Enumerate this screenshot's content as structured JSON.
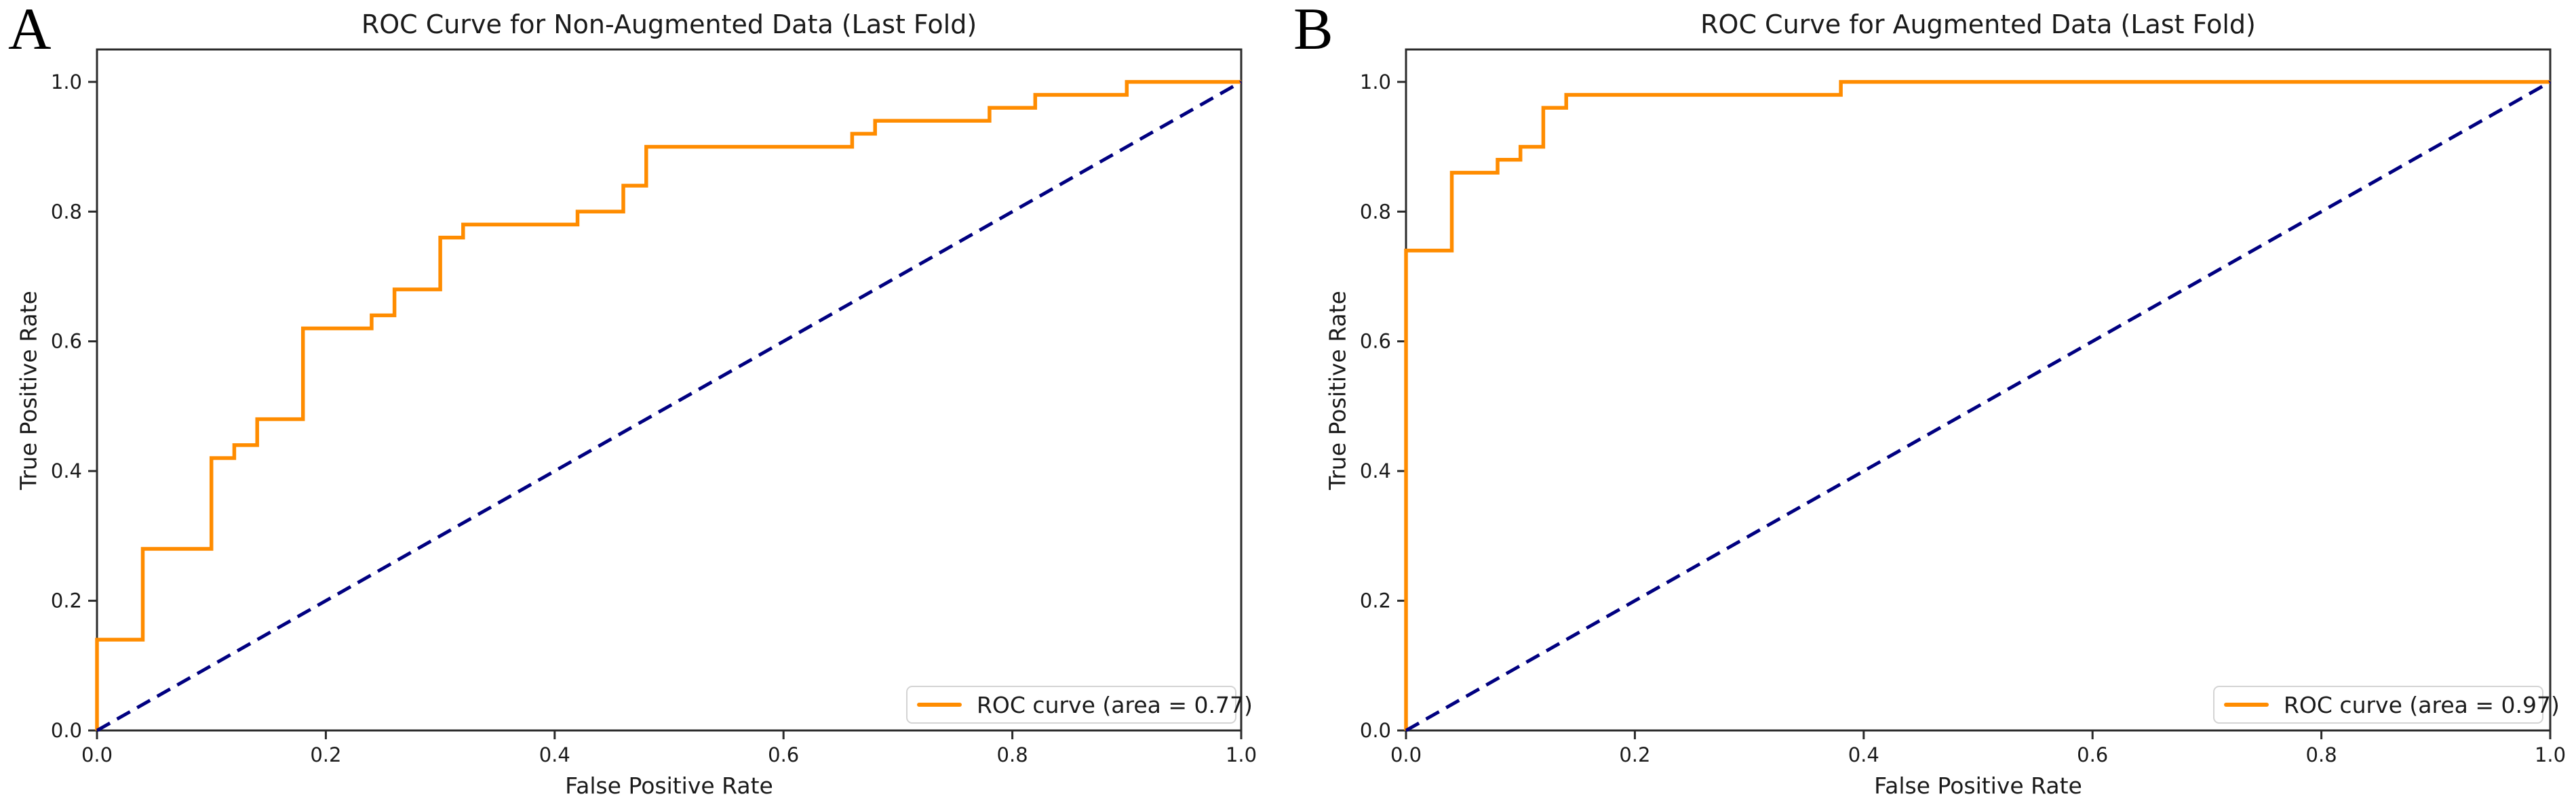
{
  "figure": {
    "background": "#ffffff",
    "text_color": "#1a1a1a",
    "spine_color": "#2b2b2b"
  },
  "chart_data": [
    {
      "type": "line",
      "panel_label": "A",
      "title": "ROC Curve for Non-Augmented Data (Last Fold)",
      "xlabel": "False Positive Rate",
      "ylabel": "True Positive Rate",
      "xlim": [
        0.0,
        1.0
      ],
      "ylim": [
        0.0,
        1.05
      ],
      "grid": false,
      "xticks": [
        0.0,
        0.2,
        0.4,
        0.6,
        0.8,
        1.0
      ],
      "xtick_labels": [
        "0.0",
        "0.2",
        "0.4",
        "0.6",
        "0.8",
        "1.0"
      ],
      "yticks": [
        0.0,
        0.2,
        0.4,
        0.6,
        0.8,
        1.0
      ],
      "ytick_labels": [
        "0.0",
        "0.2",
        "0.4",
        "0.6",
        "0.8",
        "1.0"
      ],
      "legend": {
        "position": "lower right",
        "label": "ROC curve (area = 0.77)"
      },
      "auc": 0.77,
      "colors": {
        "roc": "#FF8C00",
        "chance": "#000080"
      },
      "series": [
        {
          "name": "roc-curve",
          "style": "step-solid",
          "color": "#FF8C00",
          "fpr": [
            0.0,
            0.0,
            0.04,
            0.04,
            0.1,
            0.1,
            0.12,
            0.12,
            0.14,
            0.14,
            0.18,
            0.18,
            0.24,
            0.24,
            0.26,
            0.26,
            0.3,
            0.3,
            0.32,
            0.32,
            0.42,
            0.42,
            0.46,
            0.46,
            0.48,
            0.48,
            0.66,
            0.66,
            0.68,
            0.68,
            0.78,
            0.78,
            0.82,
            0.82,
            0.9,
            0.9,
            1.0
          ],
          "tpr": [
            0.0,
            0.14,
            0.14,
            0.28,
            0.28,
            0.42,
            0.42,
            0.44,
            0.44,
            0.48,
            0.48,
            0.62,
            0.62,
            0.64,
            0.64,
            0.68,
            0.68,
            0.76,
            0.76,
            0.78,
            0.78,
            0.8,
            0.8,
            0.84,
            0.84,
            0.9,
            0.9,
            0.92,
            0.92,
            0.94,
            0.94,
            0.96,
            0.96,
            0.98,
            0.98,
            1.0,
            1.0
          ]
        },
        {
          "name": "chance-diagonal",
          "style": "dashed",
          "color": "#000080",
          "fpr": [
            0.0,
            1.0
          ],
          "tpr": [
            0.0,
            1.0
          ]
        }
      ]
    },
    {
      "type": "line",
      "panel_label": "B",
      "title": "ROC Curve for Augmented Data (Last Fold)",
      "xlabel": "False Positive Rate",
      "ylabel": "True Positive Rate",
      "xlim": [
        0.0,
        1.0
      ],
      "ylim": [
        0.0,
        1.05
      ],
      "grid": false,
      "xticks": [
        0.0,
        0.2,
        0.4,
        0.6,
        0.8,
        1.0
      ],
      "xtick_labels": [
        "0.0",
        "0.2",
        "0.4",
        "0.6",
        "0.8",
        "1.0"
      ],
      "yticks": [
        0.0,
        0.2,
        0.4,
        0.6,
        0.8,
        1.0
      ],
      "ytick_labels": [
        "0.0",
        "0.2",
        "0.4",
        "0.6",
        "0.8",
        "1.0"
      ],
      "legend": {
        "position": "lower right",
        "label": "ROC curve (area = 0.97)"
      },
      "auc": 0.97,
      "colors": {
        "roc": "#FF8C00",
        "chance": "#000080"
      },
      "series": [
        {
          "name": "roc-curve",
          "style": "step-solid",
          "color": "#FF8C00",
          "fpr": [
            0.0,
            0.0,
            0.04,
            0.04,
            0.08,
            0.08,
            0.1,
            0.1,
            0.12,
            0.12,
            0.14,
            0.14,
            0.38,
            0.38,
            1.0
          ],
          "tpr": [
            0.0,
            0.74,
            0.74,
            0.86,
            0.86,
            0.88,
            0.88,
            0.9,
            0.9,
            0.96,
            0.96,
            0.98,
            0.98,
            1.0,
            1.0
          ]
        },
        {
          "name": "chance-diagonal",
          "style": "dashed",
          "color": "#000080",
          "fpr": [
            0.0,
            1.0
          ],
          "tpr": [
            0.0,
            1.0
          ]
        }
      ]
    }
  ]
}
